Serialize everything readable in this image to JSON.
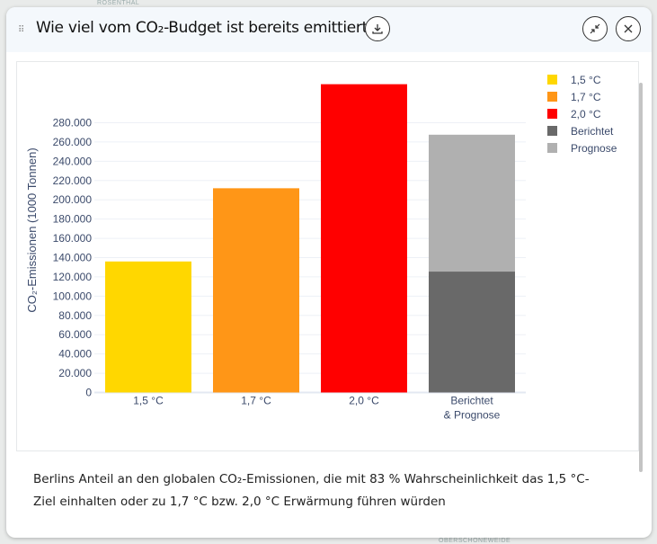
{
  "background": {
    "map_labels": [
      "ROSENTHAL",
      "OBERSCHÖNEWEIDE"
    ]
  },
  "dialog": {
    "title": "Wie viel vom CO₂-Budget ist bereits emittiert?",
    "icons": {
      "drag": "drag-handle-icon",
      "download": "download-icon",
      "minimize": "minimize-icon",
      "close": "close-icon"
    },
    "caption": "Berlins Anteil an den globalen CO₂-Emissionen, die mit 83 % Wahrscheinlichkeit das 1,5 °C-Ziel einhalten oder zu 1,7 °C bzw. 2,0 °C Erwärmung führen würden"
  },
  "chart_data": {
    "type": "bar",
    "stacked": true,
    "categories": [
      "1,5 °C",
      "1,7 °C",
      "2,0 °C",
      "Berichtet & Prognose"
    ],
    "category_lines": [
      [
        "1,5 °C"
      ],
      [
        "1,7 °C"
      ],
      [
        "2,0 °C"
      ],
      [
        "Berichtet",
        "& Prognose"
      ]
    ],
    "series": [
      {
        "name": "1,5 °C",
        "color": "#ffd700",
        "values": [
          136000,
          null,
          null,
          null
        ]
      },
      {
        "name": "1,7 °C",
        "color": "#ff9617",
        "values": [
          null,
          212000,
          null,
          null
        ]
      },
      {
        "name": "2,0 °C",
        "color": "#ff0000",
        "values": [
          null,
          null,
          320000,
          null
        ]
      },
      {
        "name": "Berichtet",
        "color": "#696969",
        "values": [
          null,
          null,
          null,
          125500
        ]
      },
      {
        "name": "Prognose",
        "color": "#b0b0b0",
        "values": [
          null,
          null,
          null,
          143000
        ]
      }
    ],
    "ylabel": "CO₂-Emissionen (1000 Tonnen)",
    "xlabel": "",
    "ylim": [
      0,
      325000
    ],
    "yticks": [
      0,
      20000,
      40000,
      60000,
      80000,
      100000,
      120000,
      140000,
      160000,
      180000,
      200000,
      220000,
      240000,
      260000,
      280000
    ],
    "ytick_labels": [
      "0",
      "20.000",
      "40.000",
      "60.000",
      "80.000",
      "100.000",
      "120.000",
      "140.000",
      "160.000",
      "180.000",
      "200.000",
      "220.000",
      "240.000",
      "260.000",
      "280.000"
    ],
    "grid": true,
    "legend": "top-right"
  }
}
